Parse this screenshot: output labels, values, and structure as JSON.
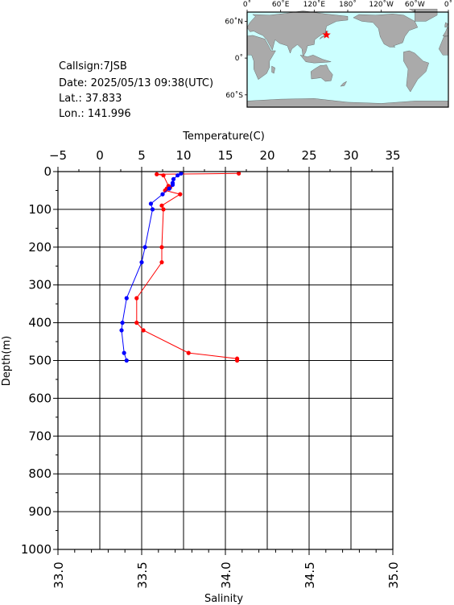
{
  "info": {
    "callsign": "Callsign:7JSB",
    "date": "Date:  2025/05/13 09:38(UTC)",
    "lat": "Lat.:   37.833",
    "lon": "Lon.:  141.996"
  },
  "map": {
    "top_labels": [
      "0˚",
      "60˚E",
      "120˚E",
      "180˚",
      "120˚W",
      "60˚W",
      "0˚"
    ],
    "left_labels": [
      "60˚N",
      "0˚",
      "60˚S"
    ],
    "marker_lat": 37.833,
    "marker_lon": 141.996,
    "ocean_color": "#ccffff",
    "land_color": "#aaaaaa",
    "marker_color": "#ff0000"
  },
  "chart_data": {
    "type": "line",
    "top_axis_label": "Temperature(C)",
    "bottom_axis_label": "Salinity",
    "left_axis_label": "Depth(m)",
    "temp_ticks": [
      "−5",
      "0",
      "5",
      "10",
      "15",
      "20",
      "25",
      "30",
      "35"
    ],
    "temp_range": [
      -5,
      35
    ],
    "sal_ticks": [
      "33.0",
      "33.5",
      "34.0",
      "34.5",
      "35.0"
    ],
    "sal_range": [
      33.0,
      35.0
    ],
    "depth_ticks": [
      "0",
      "100",
      "200",
      "300",
      "400",
      "500",
      "600",
      "700",
      "800",
      "900",
      "1000"
    ],
    "depth_range": [
      0,
      1000
    ],
    "grid": true,
    "series": [
      {
        "key": "salinity",
        "color": "#ff0000",
        "points": [
          [
            34.08,
            5
          ],
          [
            33.59,
            7
          ],
          [
            33.63,
            10
          ],
          [
            33.66,
            38
          ],
          [
            33.67,
            42
          ],
          [
            33.65,
            45
          ],
          [
            33.64,
            50
          ],
          [
            33.73,
            60
          ],
          [
            33.62,
            90
          ],
          [
            33.63,
            100
          ],
          [
            33.62,
            200
          ],
          [
            33.62,
            240
          ],
          [
            33.47,
            335
          ],
          [
            33.47,
            400
          ],
          [
            33.51,
            420
          ],
          [
            33.78,
            480
          ],
          [
            34.07,
            495
          ],
          [
            34.07,
            500
          ]
        ]
      },
      {
        "key": "temperature",
        "color": "#0000ff",
        "points": [
          [
            9.7,
            5
          ],
          [
            9.3,
            10
          ],
          [
            8.8,
            20
          ],
          [
            8.7,
            30
          ],
          [
            8.7,
            35
          ],
          [
            8.3,
            45
          ],
          [
            7.5,
            60
          ],
          [
            6.1,
            85
          ],
          [
            6.3,
            100
          ],
          [
            5.4,
            200
          ],
          [
            5.0,
            240
          ],
          [
            3.2,
            335
          ],
          [
            2.7,
            400
          ],
          [
            2.6,
            420
          ],
          [
            2.9,
            480
          ],
          [
            3.2,
            500
          ]
        ]
      }
    ]
  }
}
